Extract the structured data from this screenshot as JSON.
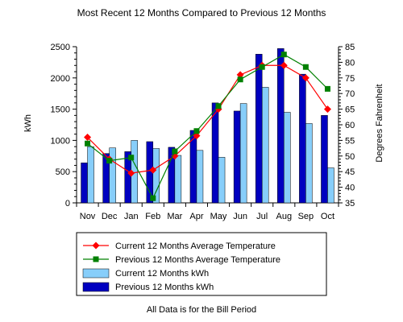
{
  "chart_data": {
    "type": "bar",
    "title": "Most Recent 12 Months Compared to Previous 12 Months",
    "footnote": "All Data is for the Bill Period",
    "categories": [
      "Nov",
      "Dec",
      "Jan",
      "Feb",
      "Mar",
      "Apr",
      "May",
      "Jun",
      "Jul",
      "Aug",
      "Sep",
      "Oct"
    ],
    "ylabel": "kWh",
    "ylabel_right": "Degrees Fahrenheit",
    "ylim": [
      0,
      2500
    ],
    "ylim_right": [
      35,
      85
    ],
    "yticks": [
      "0",
      "500",
      "1000",
      "1500",
      "2000",
      "2500"
    ],
    "yticks_right": [
      "35",
      "40",
      "45",
      "50",
      "55",
      "60",
      "65",
      "70",
      "75",
      "80",
      "85"
    ],
    "grid": false,
    "legend_position": "bottom",
    "series": [
      {
        "name": "Current 12 Months Average Temperature",
        "kind": "line",
        "axis": "right",
        "color": "#ff0000",
        "marker_color": "#ff0000",
        "marker": "diamond",
        "values": [
          56,
          49,
          44.5,
          45.5,
          50,
          56.5,
          65,
          76,
          79,
          79,
          75,
          65
        ]
      },
      {
        "name": "Previous 12 Months Average Temperature",
        "kind": "line",
        "axis": "right",
        "color": "#008000",
        "marker_color": "#008000",
        "marker": "square",
        "values": [
          54,
          48.5,
          49.5,
          36.5,
          51.5,
          58,
          66,
          74.5,
          78.5,
          82.5,
          78.5,
          71.5
        ]
      },
      {
        "name": "Current 12 Months kWh",
        "kind": "bar",
        "axis": "left",
        "color": "#87cefa",
        "values": [
          900,
          880,
          1000,
          870,
          760,
          840,
          730,
          1590,
          1850,
          1450,
          1270,
          560
        ]
      },
      {
        "name": "Previous 12 Months kWh",
        "kind": "bar",
        "axis": "left",
        "color": "#0000c0",
        "values": [
          640,
          790,
          820,
          980,
          890,
          1160,
          1600,
          1470,
          2380,
          2470,
          2060,
          1400
        ]
      }
    ]
  }
}
